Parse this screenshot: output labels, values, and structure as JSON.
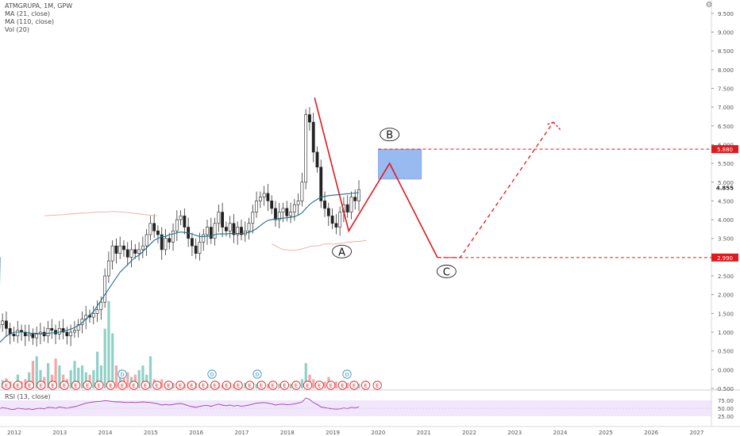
{
  "legend": {
    "symbol": "ATMGRUPA, 1M, GPW",
    "ma21": "MA (21, close)",
    "ma110": "MA (110, close)",
    "vol": "Vol (20)",
    "rsi": "RSI (13, close)"
  },
  "colors": {
    "up": "#26a69a",
    "down": "#222222",
    "vol_up": "#8fd1c6",
    "vol_down": "#f4a6a6",
    "ma21": "#1f6f8b",
    "ma110": "#f3a9a0",
    "pattern": "#e0191c",
    "target_box": "#8fb2f0",
    "rsi_line": "#9b3fb5",
    "rsi_band": "#f1e6fb",
    "price_tag": "#e0191c"
  },
  "price_axis": {
    "ticks": [
      "9.500",
      "9.000",
      "8.500",
      "8.000",
      "7.500",
      "7.000",
      "6.500",
      "6.000",
      "5.500",
      "5.000",
      "4.500",
      "4.000",
      "3.500",
      "3.000",
      "2.500",
      "2.000",
      "1.500",
      "1.000",
      "0.500",
      "0.000",
      "-0.500"
    ],
    "current": "4.855",
    "tag_high": "5.880",
    "tag_low": "2.990"
  },
  "rsi_axis": {
    "ticks": [
      "75.00",
      "50.00",
      "25.00"
    ]
  },
  "time_axis": [
    "2012",
    "2013",
    "2014",
    "2015",
    "2016",
    "2017",
    "2018",
    "2019",
    "2020",
    "2021",
    "2022",
    "2023",
    "2024",
    "2025",
    "2026",
    "2027"
  ],
  "annotations": {
    "a": "A",
    "b": "B",
    "c": "C"
  },
  "event_badges": [
    "E",
    "E",
    "E",
    "E",
    "E",
    "E",
    "E",
    "E",
    "E",
    "E",
    "E",
    "E",
    "E",
    "E",
    "E",
    "E",
    "E",
    "E",
    "E",
    "E",
    "E",
    "E",
    "E",
    "E",
    "E",
    "E",
    "E",
    "E",
    "E",
    "E",
    "E",
    "E",
    "E"
  ],
  "dividend_badges": [
    "D",
    "D",
    "D",
    "D"
  ],
  "chart_data": {
    "type": "line",
    "title": "ATMGRUPA, 1M, GPW",
    "price_range": [
      -0.5,
      9.75
    ],
    "rsi_range": [
      25,
      75
    ],
    "start_year": 2012,
    "months_visible": 96,
    "closes": [
      1.2,
      1.3,
      1.1,
      0.95,
      0.9,
      1.05,
      1.0,
      0.9,
      0.95,
      0.85,
      0.95,
      1.0,
      0.9,
      1.1,
      1.05,
      0.95,
      1.1,
      1.0,
      0.9,
      1.0,
      1.05,
      1.2,
      1.35,
      1.45,
      1.4,
      1.5,
      1.6,
      1.8,
      2.5,
      2.9,
      3.3,
      3.1,
      3.3,
      3.2,
      3.0,
      3.2,
      3.1,
      3.2,
      3.3,
      3.6,
      3.9,
      3.7,
      3.6,
      3.2,
      3.5,
      3.4,
      3.7,
      4.0,
      4.1,
      3.8,
      3.5,
      3.3,
      3.1,
      3.4,
      3.6,
      3.8,
      3.5,
      3.9,
      4.2,
      3.8,
      3.7,
      3.9,
      3.6,
      3.8,
      3.6,
      3.7,
      3.9,
      4.2,
      4.5,
      4.6,
      4.7,
      4.5,
      4.3,
      4.0,
      4.2,
      4.3,
      4.1,
      4.2,
      4.4,
      4.5,
      5.0,
      6.8,
      6.6,
      5.8,
      5.4,
      4.5,
      4.3,
      4.1,
      3.9,
      3.8,
      4.2,
      4.4,
      4.2,
      4.6,
      4.5,
      4.8
    ],
    "ma21": [
      0.7,
      0.8,
      0.9,
      0.95,
      1.0,
      1.0,
      1.0,
      1.0,
      0.98,
      0.97,
      0.97,
      0.96,
      0.96,
      0.97,
      0.98,
      0.99,
      1.0,
      1.02,
      1.05,
      1.08,
      1.12,
      1.18,
      1.25,
      1.35,
      1.45,
      1.55,
      1.7,
      1.85,
      2.0,
      2.15,
      2.3,
      2.45,
      2.6,
      2.7,
      2.8,
      2.9,
      3.0,
      3.05,
      3.15,
      3.25,
      3.35,
      3.45,
      3.5,
      3.55,
      3.55,
      3.6,
      3.62,
      3.65,
      3.67,
      3.66,
      3.64,
      3.62,
      3.58,
      3.55,
      3.55,
      3.56,
      3.57,
      3.6,
      3.62,
      3.62,
      3.62,
      3.63,
      3.63,
      3.63,
      3.63,
      3.64,
      3.66,
      3.7,
      3.76,
      3.84,
      3.92,
      3.98,
      4.0,
      4.02,
      4.03,
      4.04,
      4.05,
      4.06,
      4.08,
      4.12,
      4.18,
      4.3,
      4.4,
      4.48,
      4.54,
      4.6,
      4.62,
      4.64,
      4.65,
      4.66,
      4.67,
      4.68,
      4.69,
      4.7,
      4.71,
      4.72
    ],
    "ma110": [
      null,
      null,
      null,
      null,
      null,
      null,
      null,
      null,
      null,
      null,
      null,
      null,
      null,
      null,
      null,
      null,
      null,
      null,
      null,
      null,
      null,
      null,
      null,
      null,
      null,
      null,
      null,
      null,
      null,
      null,
      null,
      null,
      null,
      null,
      null,
      null,
      null,
      null,
      null,
      null,
      null,
      null,
      null,
      null,
      null,
      null,
      null,
      null,
      null,
      null,
      null,
      null,
      null,
      null,
      null,
      null,
      null,
      null,
      null,
      null,
      null,
      null,
      null,
      null,
      null,
      null,
      null,
      null,
      null,
      null,
      null,
      null,
      3.35,
      3.3,
      3.25,
      3.2,
      3.2,
      3.18,
      3.18,
      3.2,
      3.22,
      3.25,
      3.28,
      3.3,
      3.3,
      3.32,
      3.35,
      3.35,
      3.35,
      3.35,
      3.37,
      3.38,
      3.4,
      3.4,
      3.42,
      3.42,
      3.43,
      3.45
    ],
    "early_ma110": [
      4.1,
      4.12,
      4.13,
      4.15,
      4.17,
      4.18,
      4.2,
      4.2,
      4.22,
      4.2,
      4.18,
      4.15,
      4.12,
      4.1
    ],
    "volume": [
      0.12,
      0.18,
      0.22,
      0.15,
      0.1,
      0.3,
      0.15,
      0.2,
      0.35,
      0.6,
      0.7,
      0.4,
      0.25,
      0.55,
      0.3,
      0.65,
      0.5,
      0.3,
      0.2,
      0.4,
      0.6,
      0.45,
      0.5,
      0.35,
      0.3,
      0.4,
      0.8,
      0.5,
      1.3,
      1.9,
      1.2,
      0.5,
      0.4,
      0.3,
      0.35,
      0.25,
      0.3,
      0.4,
      0.5,
      0.3,
      0.7,
      0.2,
      0.15,
      0.2,
      0.1,
      0.15,
      0.12,
      0.1,
      0.12,
      0.1,
      0.14,
      0.1,
      0.12,
      0.1,
      0.12,
      0.1,
      0.08,
      0.1,
      0.12,
      0.08,
      0.1,
      0.12,
      0.1,
      0.14,
      0.1,
      0.12,
      0.1,
      0.12,
      0.1,
      0.12,
      0.1,
      0.1,
      0.12,
      0.1,
      0.1,
      0.12,
      0.1,
      0.1,
      0.15,
      0.12,
      0.2,
      0.55,
      0.3,
      0.2,
      0.15,
      0.12,
      0.15,
      0.25,
      0.1,
      0.15,
      0.08,
      0.1,
      0.12,
      0.1,
      0.08,
      0.1
    ],
    "rsi": [
      48,
      52,
      50,
      47,
      46,
      50,
      49,
      47,
      48,
      46,
      49,
      50,
      48,
      53,
      52,
      50,
      54,
      52,
      50,
      53,
      55,
      58,
      62,
      66,
      68,
      70,
      71,
      72,
      74,
      73,
      71,
      70,
      70,
      69,
      68,
      69,
      68,
      69,
      70,
      69,
      68,
      66,
      64,
      60,
      62,
      60,
      62,
      64,
      65,
      62,
      58,
      55,
      53,
      56,
      58,
      59,
      56,
      60,
      63,
      60,
      58,
      60,
      57,
      59,
      56,
      58,
      60,
      63,
      66,
      67,
      68,
      66,
      64,
      60,
      62,
      63,
      61,
      62,
      64,
      66,
      70,
      82,
      78,
      68,
      62,
      54,
      52,
      50,
      48,
      47,
      48,
      51,
      49,
      53,
      51,
      54
    ],
    "pattern": [
      {
        "year": 2018.6,
        "price": 7.25
      },
      {
        "year": 2019.35,
        "price": 3.7
      },
      {
        "year": 2020.25,
        "price": 5.5
      },
      {
        "year": 2021.3,
        "price": 2.99
      }
    ],
    "projection": [
      {
        "year": 2021.3,
        "price": 2.99
      },
      {
        "year": 2021.8,
        "price": 2.99
      },
      {
        "year": 2023.85,
        "price": 6.6
      },
      {
        "year": 2024.0,
        "price": 6.4
      }
    ],
    "target_zone": {
      "x_from": 2020.0,
      "x_to": 2020.95,
      "low": 5.08,
      "high": 5.88
    },
    "label_points": {
      "A": {
        "year": 2019.2,
        "price": 3.15
      },
      "B": {
        "year": 2020.25,
        "price": 6.27
      },
      "C": {
        "year": 2021.5,
        "price": 2.62
      }
    },
    "levels": [
      5.88,
      2.99
    ]
  }
}
